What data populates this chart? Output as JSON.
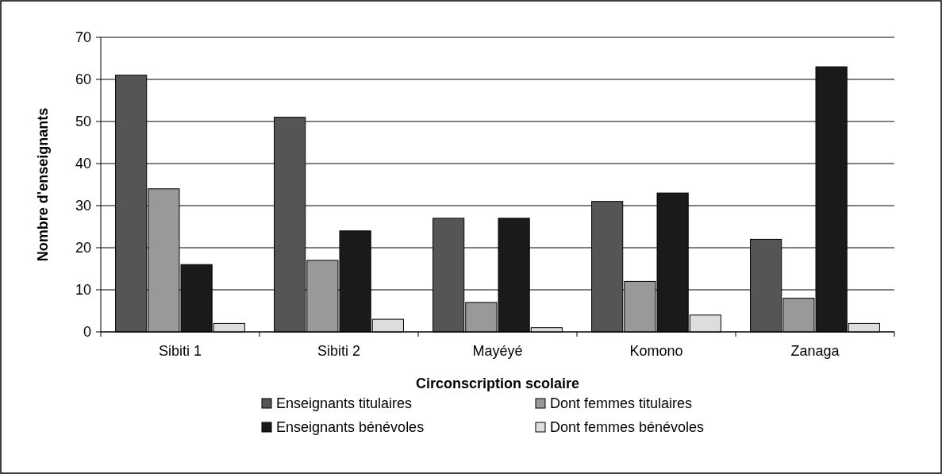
{
  "chart_data": {
    "type": "bar",
    "xlabel": "Circonscription scolaire",
    "ylabel": "Nombre d'enseignants",
    "categories": [
      "Sibiti 1",
      "Sibiti 2",
      "Mayéyé",
      "Komono",
      "Zanaga"
    ],
    "series": [
      {
        "name": "Enseignants titulaires",
        "color": "#555555",
        "values": [
          61,
          51,
          27,
          31,
          22
        ]
      },
      {
        "name": "Dont femmes titulaires",
        "color": "#999999",
        "values": [
          34,
          17,
          7,
          12,
          8
        ]
      },
      {
        "name": "Enseignants bénévoles",
        "color": "#1a1a1a",
        "values": [
          16,
          24,
          27,
          33,
          63
        ]
      },
      {
        "name": "Dont femmes bénévoles",
        "color": "#dddddd",
        "values": [
          2,
          3,
          1,
          4,
          2
        ]
      }
    ],
    "ylim": [
      0,
      70
    ],
    "yticks": [
      0,
      10,
      20,
      30,
      40,
      50,
      60,
      70
    ],
    "grid": "y",
    "legend": "bottom"
  }
}
